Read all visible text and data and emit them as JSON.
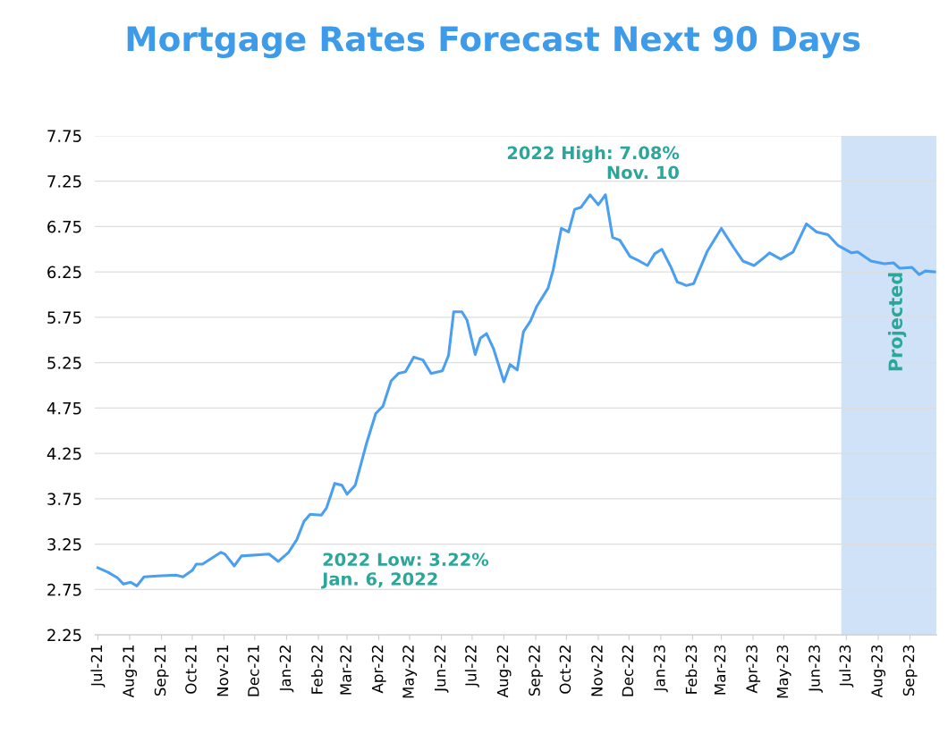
{
  "chart_data": {
    "type": "line",
    "title": "Mortgage Rates Forecast Next 90 Days",
    "x": [
      "2021-07-01",
      "2021-07-11",
      "2021-07-20",
      "2021-07-26",
      "2021-08-02",
      "2021-08-08",
      "2021-08-15",
      "2021-08-28",
      "2021-09-15",
      "2021-09-22",
      "2021-10-01",
      "2021-10-05",
      "2021-10-11",
      "2021-10-29",
      "2021-11-02",
      "2021-11-11",
      "2021-11-18",
      "2021-12-15",
      "2021-12-24",
      "2022-01-03",
      "2022-01-11",
      "2022-01-18",
      "2022-01-24",
      "2022-02-04",
      "2022-02-09",
      "2022-02-17",
      "2022-02-24",
      "2022-03-01",
      "2022-03-09",
      "2022-03-20",
      "2022-03-29",
      "2022-04-05",
      "2022-04-13",
      "2022-04-20",
      "2022-04-27",
      "2022-05-05",
      "2022-05-14",
      "2022-05-22",
      "2022-06-02",
      "2022-06-08",
      "2022-06-13",
      "2022-06-21",
      "2022-06-26",
      "2022-07-04",
      "2022-07-09",
      "2022-07-15",
      "2022-07-22",
      "2022-08-01",
      "2022-08-07",
      "2022-08-14",
      "2022-08-20",
      "2022-08-27",
      "2022-09-02",
      "2022-09-13",
      "2022-09-18",
      "2022-09-26",
      "2022-10-03",
      "2022-10-09",
      "2022-10-15",
      "2022-10-24",
      "2022-11-01",
      "2022-11-08",
      "2022-11-15",
      "2022-11-22",
      "2022-12-02",
      "2022-12-11",
      "2022-12-19",
      "2022-12-26",
      "2023-01-02",
      "2023-01-11",
      "2023-01-17",
      "2023-01-26",
      "2023-02-02",
      "2023-02-15",
      "2023-03-01",
      "2023-03-13",
      "2023-03-22",
      "2023-04-02",
      "2023-04-13",
      "2023-04-17",
      "2023-04-28",
      "2023-05-10",
      "2023-05-23",
      "2023-06-02",
      "2023-06-13",
      "2023-06-23",
      "2023-07-06",
      "2023-07-12",
      "2023-07-25",
      "2023-08-07",
      "2023-08-16",
      "2023-08-22",
      "2023-09-03",
      "2023-09-10",
      "2023-09-16",
      "2023-09-25"
    ],
    "series": [
      {
        "color": "#4a9ff0",
        "values": [
          2.99,
          2.94,
          2.88,
          2.81,
          2.83,
          2.79,
          2.89,
          2.9,
          2.91,
          2.89,
          2.96,
          3.03,
          3.03,
          3.16,
          3.14,
          3.01,
          3.12,
          3.14,
          3.06,
          3.16,
          3.3,
          3.5,
          3.58,
          3.57,
          3.65,
          3.92,
          3.9,
          3.8,
          3.9,
          4.36,
          4.69,
          4.77,
          5.05,
          5.13,
          5.15,
          5.31,
          5.28,
          5.13,
          5.16,
          5.33,
          5.81,
          5.81,
          5.72,
          5.34,
          5.52,
          5.57,
          5.4,
          5.04,
          5.23,
          5.17,
          5.59,
          5.71,
          5.87,
          6.07,
          6.27,
          6.73,
          6.69,
          6.94,
          6.96,
          7.1,
          6.99,
          7.1,
          6.63,
          6.6,
          6.42,
          6.37,
          6.32,
          6.45,
          6.5,
          6.3,
          6.14,
          6.1,
          6.12,
          6.47,
          6.73,
          6.52,
          6.37,
          6.32,
          6.42,
          6.46,
          6.39,
          6.47,
          6.78,
          6.69,
          6.66,
          6.54,
          6.46,
          6.47,
          6.37,
          6.34,
          6.35,
          6.29,
          6.3,
          6.22,
          6.26,
          6.25
        ]
      }
    ],
    "xlim": [
      "2021-06-28",
      "2023-09-27"
    ],
    "xticks": [
      {
        "value": "2021-07-01",
        "label": "Jul-21"
      },
      {
        "value": "2021-08-01",
        "label": "Aug-21"
      },
      {
        "value": "2021-09-01",
        "label": "Sep-21"
      },
      {
        "value": "2021-10-01",
        "label": "Oct-21"
      },
      {
        "value": "2021-11-01",
        "label": "Nov-21"
      },
      {
        "value": "2021-12-01",
        "label": "Dec-21"
      },
      {
        "value": "2022-01-01",
        "label": "Jan-22"
      },
      {
        "value": "2022-02-01",
        "label": "Feb-22"
      },
      {
        "value": "2022-03-01",
        "label": "Mar-22"
      },
      {
        "value": "2022-04-01",
        "label": "Apr-22"
      },
      {
        "value": "2022-05-01",
        "label": "May-22"
      },
      {
        "value": "2022-06-01",
        "label": "Jun-22"
      },
      {
        "value": "2022-07-01",
        "label": "Jul-22"
      },
      {
        "value": "2022-08-01",
        "label": "Aug-22"
      },
      {
        "value": "2022-09-01",
        "label": "Sep-22"
      },
      {
        "value": "2022-10-01",
        "label": "Oct-22"
      },
      {
        "value": "2022-11-01",
        "label": "Nov-22"
      },
      {
        "value": "2022-12-01",
        "label": "Dec-22"
      },
      {
        "value": "2023-01-01",
        "label": "Jan-23"
      },
      {
        "value": "2023-02-01",
        "label": "Feb-23"
      },
      {
        "value": "2023-03-01",
        "label": "Mar-23"
      },
      {
        "value": "2023-04-01",
        "label": "Apr-23"
      },
      {
        "value": "2023-05-01",
        "label": "May-23"
      },
      {
        "value": "2023-06-01",
        "label": "Jun-23"
      },
      {
        "value": "2023-07-01",
        "label": "Jul-23"
      },
      {
        "value": "2023-08-01",
        "label": "Aug-23"
      },
      {
        "value": "2023-09-01",
        "label": "Sep-23"
      }
    ],
    "ylim": [
      2.25,
      7.75
    ],
    "yticks": [
      {
        "value": 2.25,
        "label": "2.25"
      },
      {
        "value": 2.75,
        "label": "2.75"
      },
      {
        "value": 3.25,
        "label": "3.25"
      },
      {
        "value": 3.75,
        "label": "3.75"
      },
      {
        "value": 4.25,
        "label": "4.25"
      },
      {
        "value": 4.75,
        "label": "4.75"
      },
      {
        "value": 5.25,
        "label": "5.25"
      },
      {
        "value": 5.75,
        "label": "5.75"
      },
      {
        "value": 6.25,
        "label": "6.25"
      },
      {
        "value": 6.75,
        "label": "6.75"
      },
      {
        "value": 7.25,
        "label": "7.25"
      },
      {
        "value": 7.75,
        "label": "7.75"
      }
    ],
    "grid": "y",
    "bands": [
      {
        "axis": "x",
        "from": "2023-06-26",
        "to": "2023-09-27",
        "label": "Projected",
        "color": "#cfe2f7"
      }
    ],
    "annotations": [
      {
        "text": "2022 High: 7.08%\nNov. 10",
        "x": "2022-11-08",
        "y": 7.1
      },
      "2022 Low: 3.22%\nJan. 6, 2022"
    ]
  }
}
